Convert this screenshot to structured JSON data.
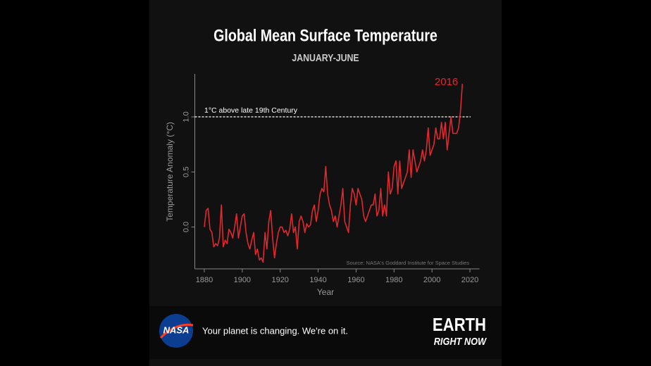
{
  "chart_data": {
    "type": "line",
    "title": "Global Mean Surface Temperature",
    "subtitle": "JANUARY-JUNE",
    "x_label": "Year",
    "y_label": "Temperature Anomaly (°C)",
    "source": "Source: NASA's Goddard Institute for Space Studies",
    "highlight_label": "2016",
    "reference_line": {
      "value": 1.0,
      "label": "1°C above late 19th Century"
    },
    "color": "#e0282e",
    "xlim": [
      1875,
      2025
    ],
    "ylim": [
      -0.38,
      1.39
    ],
    "xticks": [
      1880,
      1900,
      1920,
      1940,
      1960,
      1980,
      2000,
      2020
    ],
    "yticks": [
      {
        "value": 0,
        "label": "0.0"
      },
      0.5,
      {
        "value": 1.0,
        "label": "1.0"
      }
    ],
    "x": [
      1880,
      1881,
      1882,
      1883,
      1884,
      1885,
      1886,
      1887,
      1888,
      1889,
      1890,
      1891,
      1892,
      1893,
      1894,
      1895,
      1896,
      1897,
      1898,
      1899,
      1900,
      1901,
      1902,
      1903,
      1904,
      1905,
      1906,
      1907,
      1908,
      1909,
      1910,
      1911,
      1912,
      1913,
      1914,
      1915,
      1916,
      1917,
      1918,
      1919,
      1920,
      1921,
      1922,
      1923,
      1924,
      1925,
      1926,
      1927,
      1928,
      1929,
      1930,
      1931,
      1932,
      1933,
      1934,
      1935,
      1936,
      1937,
      1938,
      1939,
      1940,
      1941,
      1942,
      1943,
      1944,
      1945,
      1946,
      1947,
      1948,
      1949,
      1950,
      1951,
      1952,
      1953,
      1954,
      1955,
      1956,
      1957,
      1958,
      1959,
      1960,
      1961,
      1962,
      1963,
      1964,
      1965,
      1966,
      1967,
      1968,
      1969,
      1970,
      1971,
      1972,
      1973,
      1974,
      1975,
      1976,
      1977,
      1978,
      1979,
      1980,
      1981,
      1982,
      1983,
      1984,
      1985,
      1986,
      1987,
      1988,
      1989,
      1990,
      1991,
      1992,
      1993,
      1994,
      1995,
      1996,
      1997,
      1998,
      1999,
      2000,
      2001,
      2002,
      2003,
      2004,
      2005,
      2006,
      2007,
      2008,
      2009,
      2010,
      2011,
      2012,
      2013,
      2014,
      2015,
      2016
    ],
    "values": [
      0.0,
      0.15,
      0.17,
      -0.02,
      -0.05,
      -0.18,
      -0.15,
      -0.17,
      -0.1,
      0.2,
      -0.18,
      -0.12,
      -0.15,
      -0.02,
      -0.05,
      -0.1,
      0.0,
      0.12,
      -0.1,
      0.0,
      0.1,
      0.12,
      -0.05,
      -0.15,
      -0.2,
      -0.12,
      -0.05,
      -0.25,
      -0.2,
      -0.3,
      -0.28,
      -0.32,
      -0.05,
      -0.2,
      0.05,
      0.15,
      -0.1,
      -0.28,
      -0.15,
      -0.05,
      0.0,
      0.0,
      -0.05,
      -0.03,
      -0.08,
      -0.02,
      0.12,
      -0.05,
      0.0,
      -0.2,
      0.05,
      0.1,
      0.05,
      -0.05,
      0.03,
      0.0,
      0.02,
      0.15,
      0.2,
      0.05,
      0.15,
      0.3,
      0.35,
      0.32,
      0.55,
      0.3,
      0.2,
      0.15,
      0.05,
      0.1,
      0.0,
      0.1,
      0.2,
      0.35,
      0.05,
      0.0,
      -0.05,
      0.2,
      0.35,
      0.3,
      0.2,
      0.35,
      0.3,
      0.25,
      0.1,
      0.05,
      0.1,
      0.15,
      0.2,
      0.2,
      0.3,
      0.1,
      0.15,
      0.35,
      0.1,
      0.2,
      0.1,
      0.5,
      0.3,
      0.35,
      0.55,
      0.6,
      0.3,
      0.6,
      0.35,
      0.4,
      0.45,
      0.5,
      0.7,
      0.45,
      0.7,
      0.6,
      0.5,
      0.55,
      0.6,
      0.7,
      0.6,
      0.7,
      0.9,
      0.65,
      0.7,
      0.75,
      0.9,
      0.8,
      0.8,
      0.95,
      0.8,
      0.95,
      0.7,
      0.85,
      1.0,
      0.85,
      0.85,
      0.85,
      0.9,
      1.05,
      1.3
    ]
  },
  "footer": {
    "logo": "NASA",
    "tagline": "Your planet is changing. We're on it.",
    "brand_line1": "EARTH",
    "brand_line2": "RIGHT NOW"
  }
}
